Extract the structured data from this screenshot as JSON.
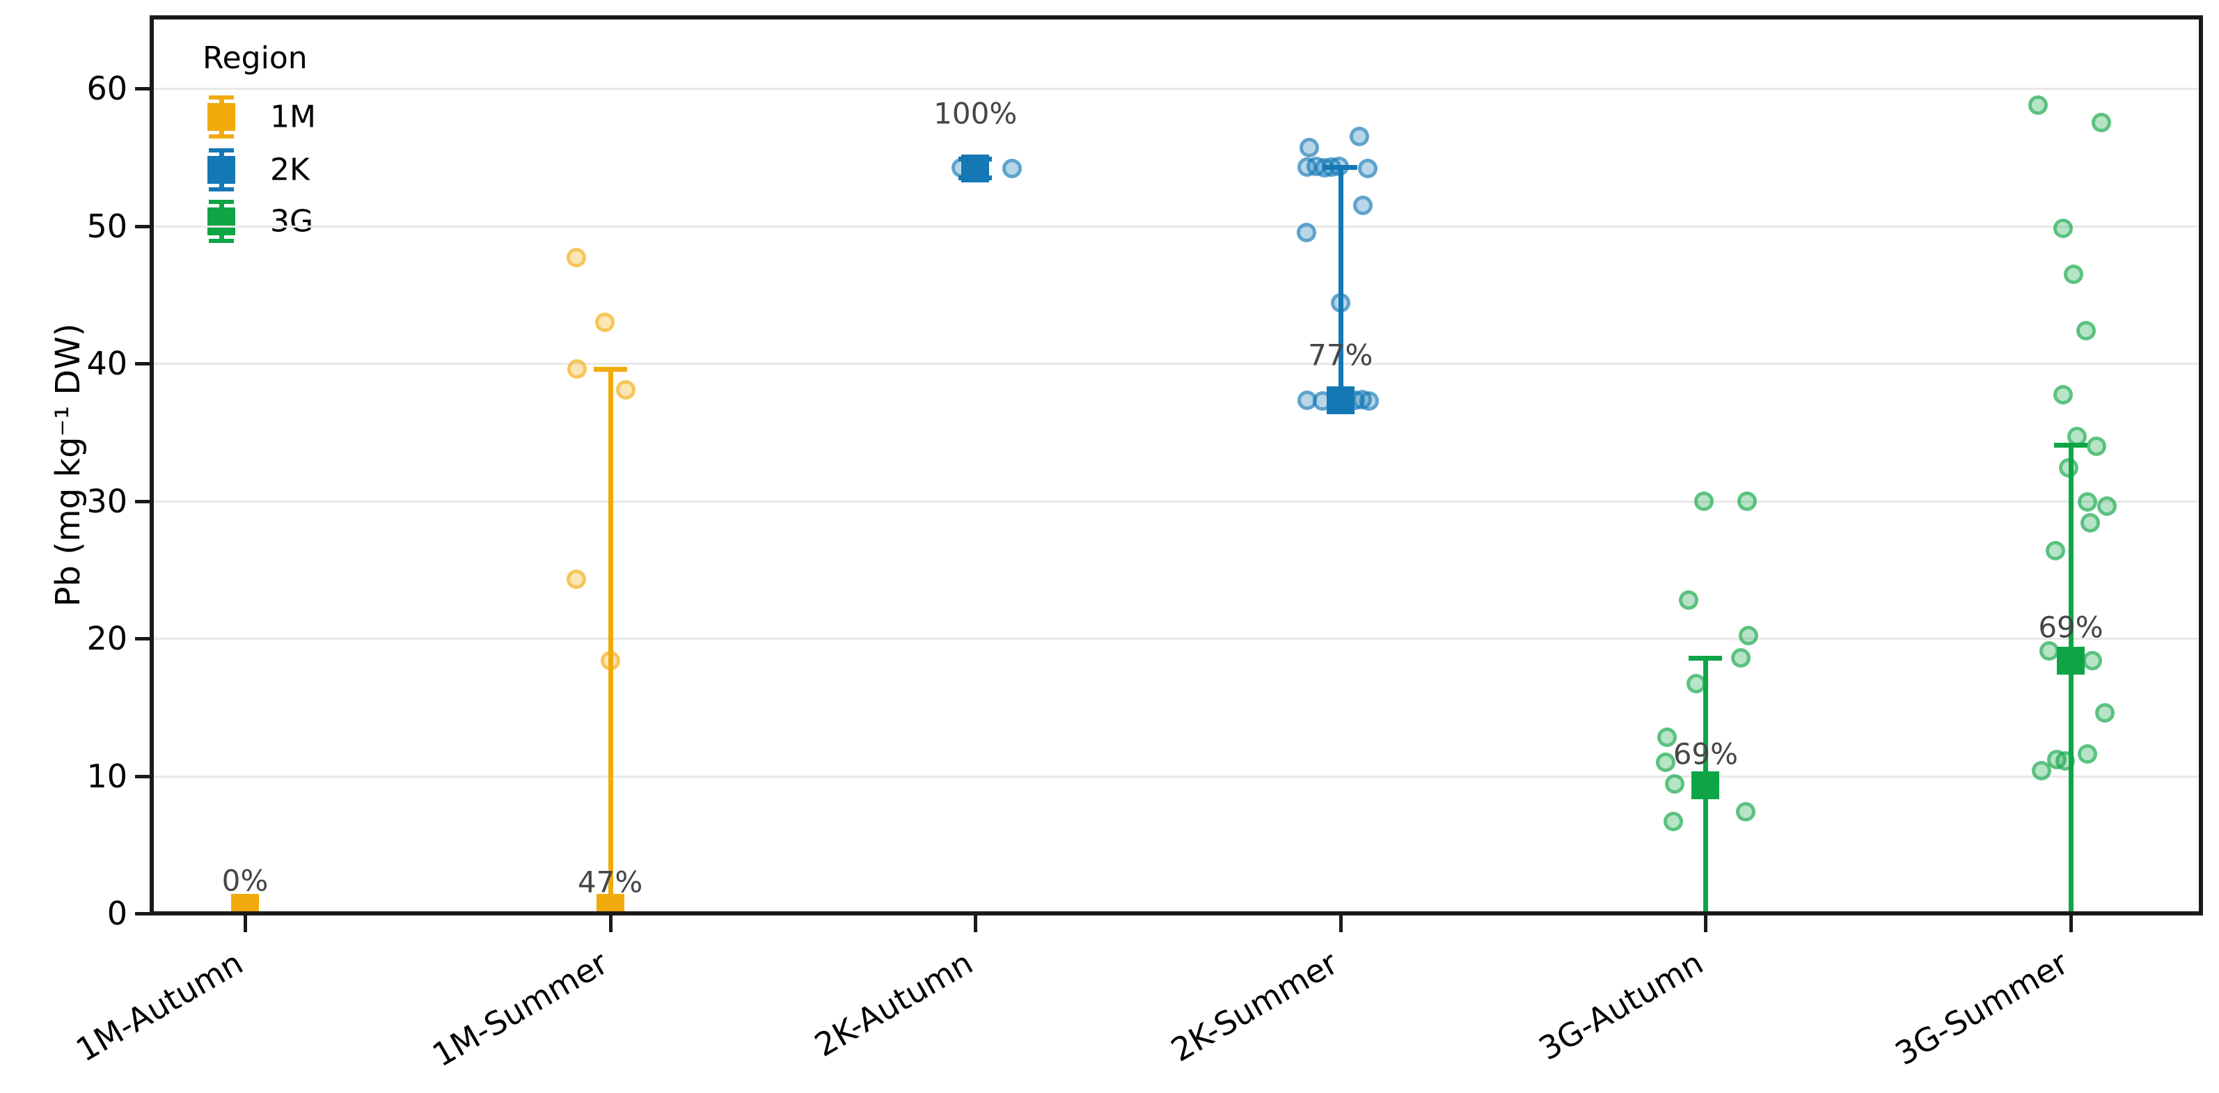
{
  "chart_data": {
    "type": "scatter",
    "title": "",
    "ylabel": "Pb (mg kg⁻¹ DW)",
    "xlabel": "",
    "ylim": [
      0,
      65.2
    ],
    "yticks": [
      0,
      10,
      20,
      30,
      40,
      50,
      60
    ],
    "grid": "horizontal",
    "categories": [
      "1M-Autumn",
      "1M-Summer",
      "2K-Autumn",
      "2K-Summer",
      "3G-Autumn",
      "3G-Summer"
    ],
    "legend": {
      "title": "Region",
      "position": "upper-left",
      "entries": [
        {
          "label": "1M",
          "color": "#F2AB0D"
        },
        {
          "label": "2K",
          "color": "#1478B5"
        },
        {
          "label": "3G",
          "color": "#0FA546"
        }
      ]
    },
    "annotation_color": "#464646",
    "grid_color": "#e8e8e8",
    "spine_color": "#1a1a1a",
    "groups": [
      {
        "category": "1M-Autumn",
        "region": "1M",
        "color": "#F2AB0D",
        "mean": 0.4,
        "err_top": null,
        "line_bottom": null,
        "annotation": "0%",
        "annotation_y": 2.4,
        "points": []
      },
      {
        "category": "1M-Summer",
        "region": "1M",
        "color": "#F2AB0D",
        "mean": 0.4,
        "err_top": 39.6,
        "line_bottom": 0,
        "annotation": "47%",
        "annotation_y": 2.3,
        "points": [
          {
            "dx": -0.093,
            "y": 47.7
          },
          {
            "dx": -0.015,
            "y": 43.0
          },
          {
            "dx": -0.091,
            "y": 39.6
          },
          {
            "dx": 0.042,
            "y": 38.1
          },
          {
            "dx": -0.093,
            "y": 24.3
          },
          {
            "dx": 0.0,
            "y": 18.4
          }
        ]
      },
      {
        "category": "2K-Autumn",
        "region": "2K",
        "color": "#1478B5",
        "mean": 54.2,
        "err_top": 54.9,
        "line_bottom": 53.5,
        "err_bottom_cap": 53.5,
        "annotation": "100%",
        "annotation_y": 58.2,
        "points": [
          {
            "dx": -0.038,
            "y": 54.25
          },
          {
            "dx": 0.1,
            "y": 54.2
          }
        ]
      },
      {
        "category": "2K-Summer",
        "region": "2K",
        "color": "#1478B5",
        "mean": 37.3,
        "err_top": 54.3,
        "line_bottom": 37.3,
        "annotation": "77%",
        "annotation_y": 40.6,
        "points": [
          {
            "dx": 0.052,
            "y": 56.5
          },
          {
            "dx": -0.085,
            "y": 55.7
          },
          {
            "dx": -0.092,
            "y": 54.3
          },
          {
            "dx": -0.067,
            "y": 54.35
          },
          {
            "dx": -0.044,
            "y": 54.25
          },
          {
            "dx": -0.025,
            "y": 54.3
          },
          {
            "dx": -0.004,
            "y": 54.35
          },
          {
            "dx": 0.075,
            "y": 54.2
          },
          {
            "dx": 0.061,
            "y": 51.5
          },
          {
            "dx": -0.093,
            "y": 49.5
          },
          {
            "dx": 0.0,
            "y": 44.4
          },
          {
            "dx": -0.092,
            "y": 37.3
          },
          {
            "dx": -0.05,
            "y": 37.25
          },
          {
            "dx": 0.04,
            "y": 37.3
          },
          {
            "dx": 0.059,
            "y": 37.35
          },
          {
            "dx": 0.078,
            "y": 37.25
          }
        ]
      },
      {
        "category": "3G-Autumn",
        "region": "3G",
        "color": "#0FA546",
        "mean": 9.3,
        "err_top": 18.6,
        "line_bottom": 0,
        "annotation": "69%",
        "annotation_y": 11.6,
        "points": [
          {
            "dx": -0.004,
            "y": 30.0
          },
          {
            "dx": 0.114,
            "y": 30.0
          },
          {
            "dx": -0.046,
            "y": 22.8
          },
          {
            "dx": 0.118,
            "y": 20.2
          },
          {
            "dx": 0.097,
            "y": 18.6
          },
          {
            "dx": -0.025,
            "y": 16.7
          },
          {
            "dx": -0.106,
            "y": 12.8
          },
          {
            "dx": -0.11,
            "y": 11.0
          },
          {
            "dx": -0.085,
            "y": 9.4
          },
          {
            "dx": 0.11,
            "y": 7.4
          },
          {
            "dx": -0.089,
            "y": 6.7
          }
        ]
      },
      {
        "category": "3G-Summer",
        "region": "3G",
        "color": "#0FA546",
        "mean": 18.4,
        "err_top": 34.1,
        "line_bottom": 0,
        "annotation": "69%",
        "annotation_y": 20.8,
        "points": [
          {
            "dx": -0.09,
            "y": 58.8
          },
          {
            "dx": 0.084,
            "y": 57.5
          },
          {
            "dx": -0.021,
            "y": 49.8
          },
          {
            "dx": 0.008,
            "y": 46.5
          },
          {
            "dx": 0.042,
            "y": 42.4
          },
          {
            "dx": -0.021,
            "y": 37.7
          },
          {
            "dx": 0.017,
            "y": 34.7
          },
          {
            "dx": 0.07,
            "y": 34.0
          },
          {
            "dx": -0.005,
            "y": 32.4
          },
          {
            "dx": 0.046,
            "y": 29.9
          },
          {
            "dx": 0.099,
            "y": 29.6
          },
          {
            "dx": 0.053,
            "y": 28.4
          },
          {
            "dx": -0.041,
            "y": 26.4
          },
          {
            "dx": -0.059,
            "y": 19.1
          },
          {
            "dx": 0.059,
            "y": 18.4
          },
          {
            "dx": 0.093,
            "y": 14.6
          },
          {
            "dx": 0.046,
            "y": 11.6
          },
          {
            "dx": -0.038,
            "y": 11.2
          },
          {
            "dx": -0.015,
            "y": 11.1
          },
          {
            "dx": -0.08,
            "y": 10.4
          }
        ]
      }
    ]
  }
}
